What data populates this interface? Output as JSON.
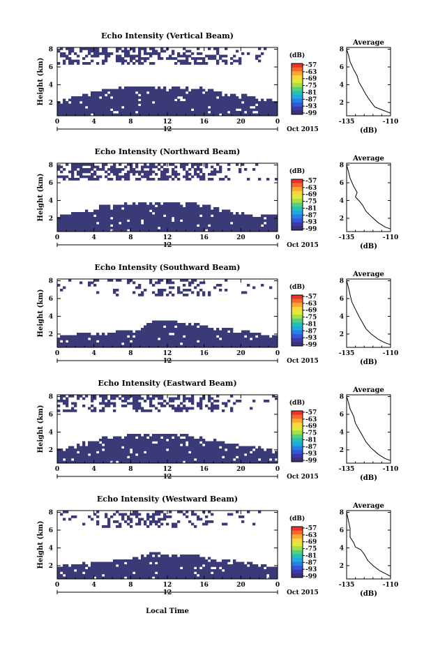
{
  "figure": {
    "xlabel": "Local Time",
    "date_label": "Oct 2015",
    "colorbar_unit": "(dB)",
    "colorbar_ticks": [
      "-57",
      "-63",
      "-69",
      "-75",
      "-81",
      "-87",
      "-93",
      "-99"
    ],
    "colorbar_colors": [
      "#e8322a",
      "#f56a2a",
      "#fba535",
      "#fbd43e",
      "#e0ea3a",
      "#a4e04a",
      "#58cf7c",
      "#26c1b6",
      "#1fa9e0",
      "#2a7ee8",
      "#3755d8",
      "#3d3aa8",
      "#3b3273"
    ],
    "fill_color": "#3b3a78",
    "mark_color": "#000000"
  },
  "chart_data": [
    {
      "type": "heatmap",
      "title": "Echo Intensity (Vertical Beam)",
      "ylabel": "Height (km)",
      "xlim": [
        0,
        24
      ],
      "ylim": [
        0.5,
        8.2
      ],
      "x_ticks": [
        "0",
        "4",
        "8",
        "12",
        "16",
        "20",
        "0"
      ],
      "x_center_label": "12",
      "y_ticks": [
        "2",
        "4",
        "6",
        "8"
      ],
      "low_top_km": [
        2.1,
        2.5,
        2.7,
        2.9,
        3.3,
        3.5,
        3.6,
        3.7,
        3.8,
        3.8,
        3.8,
        3.8,
        3.9,
        3.8,
        3.8,
        3.8,
        3.6,
        3.4,
        3.2,
        3.0,
        2.9,
        2.8,
        2.7,
        2.5
      ],
      "upper_cloud_km": [
        6.2,
        8.1
      ],
      "upper_cover": [
        0.45,
        0.6,
        0.55,
        0.6,
        0.55,
        0.5,
        0.45,
        0.5,
        0.55,
        0.55,
        0.5,
        0.5,
        0.45,
        0.5,
        0.55,
        0.5,
        0.45,
        0.45,
        0.3,
        0.2,
        0.1,
        0.1,
        0.08,
        0.05
      ],
      "profile": {
        "title": "Average",
        "xlabel": "(dB)",
        "x_ticks": [
          "-135",
          "-110"
        ],
        "xlim": [
          -135,
          -110
        ],
        "y_ticks": [
          "2",
          "4",
          "6",
          "8"
        ],
        "ylim": [
          0.5,
          8.2
        ],
        "points": [
          [
            -135,
            8.0
          ],
          [
            -134,
            7.4
          ],
          [
            -133,
            6.6
          ],
          [
            -131,
            5.7
          ],
          [
            -129,
            5.0
          ],
          [
            -128,
            4.3
          ],
          [
            -126,
            3.6
          ],
          [
            -124,
            2.9
          ],
          [
            -122,
            2.3
          ],
          [
            -119,
            1.5
          ],
          [
            -114,
            1.1
          ],
          [
            -110,
            0.8
          ]
        ]
      }
    },
    {
      "type": "heatmap",
      "title": "Echo Intensity (Northward Beam)",
      "ylabel": "Height (km)",
      "xlim": [
        0,
        24
      ],
      "ylim": [
        0.5,
        8.2
      ],
      "x_ticks": [
        "0",
        "4",
        "8",
        "12",
        "16",
        "20",
        "0"
      ],
      "x_center_label": "12",
      "y_ticks": [
        "2",
        "4",
        "6",
        "8"
      ],
      "low_top_km": [
        2.3,
        2.5,
        2.6,
        2.9,
        3.2,
        3.5,
        3.5,
        3.6,
        3.8,
        3.9,
        3.9,
        3.9,
        3.8,
        3.8,
        3.8,
        3.7,
        3.6,
        3.3,
        3.0,
        2.8,
        2.6,
        2.5,
        2.4,
        2.3
      ],
      "upper_cloud_km": [
        6.2,
        8.1
      ],
      "upper_cover": [
        0.4,
        0.55,
        0.6,
        0.6,
        0.55,
        0.55,
        0.6,
        0.6,
        0.55,
        0.55,
        0.6,
        0.55,
        0.5,
        0.5,
        0.5,
        0.55,
        0.45,
        0.4,
        0.25,
        0.15,
        0.1,
        0.1,
        0.08,
        0.05
      ],
      "profile": {
        "title": "Average",
        "xlabel": "(dB)",
        "x_ticks": [
          "-135",
          "-110"
        ],
        "xlim": [
          -135,
          -110
        ],
        "y_ticks": [
          "2",
          "4",
          "6",
          "8"
        ],
        "ylim": [
          0.5,
          8.2
        ],
        "points": [
          [
            -135,
            8.0
          ],
          [
            -134,
            7.3
          ],
          [
            -133,
            6.5
          ],
          [
            -131,
            5.6
          ],
          [
            -129,
            4.9
          ],
          [
            -130,
            4.4
          ],
          [
            -128,
            4.0
          ],
          [
            -126,
            3.5
          ],
          [
            -124,
            2.8
          ],
          [
            -121,
            2.2
          ],
          [
            -117,
            1.5
          ],
          [
            -113,
            1.0
          ],
          [
            -110,
            0.8
          ]
        ]
      }
    },
    {
      "type": "heatmap",
      "title": "Echo Intensity (Southward Beam)",
      "ylabel": "Height (km)",
      "xlim": [
        0,
        24
      ],
      "ylim": [
        0.5,
        8.2
      ],
      "x_ticks": [
        "0",
        "4",
        "8",
        "12",
        "16",
        "20",
        "0"
      ],
      "x_center_label": "12",
      "y_ticks": [
        "2",
        "4",
        "6",
        "8"
      ],
      "low_top_km": [
        1.7,
        1.9,
        2.0,
        2.1,
        2.1,
        2.2,
        2.2,
        2.4,
        2.5,
        2.6,
        3.4,
        3.5,
        3.5,
        3.4,
        3.3,
        3.2,
        3.0,
        2.8,
        2.6,
        2.6,
        2.4,
        2.3,
        2.1,
        2.0
      ],
      "upper_cloud_km": [
        6.2,
        8.1
      ],
      "upper_cover": [
        0.05,
        0.05,
        0.08,
        0.1,
        0.1,
        0.15,
        0.2,
        0.15,
        0.15,
        0.2,
        0.3,
        0.4,
        0.45,
        0.45,
        0.4,
        0.3,
        0.2,
        0.15,
        0.1,
        0.1,
        0.08,
        0.05,
        0.05,
        0.05
      ],
      "profile": {
        "title": "Average",
        "xlabel": "(dB)",
        "x_ticks": [
          "-135",
          "-110"
        ],
        "xlim": [
          -135,
          -110
        ],
        "y_ticks": [
          "2",
          "4",
          "6",
          "8"
        ],
        "ylim": [
          0.5,
          8.2
        ],
        "points": [
          [
            -135,
            8.0
          ],
          [
            -134,
            7.3
          ],
          [
            -133,
            6.4
          ],
          [
            -132,
            5.6
          ],
          [
            -130,
            4.8
          ],
          [
            -128,
            4.0
          ],
          [
            -126,
            3.3
          ],
          [
            -124,
            2.6
          ],
          [
            -121,
            2.0
          ],
          [
            -117,
            1.4
          ],
          [
            -113,
            1.0
          ],
          [
            -110,
            0.8
          ]
        ]
      }
    },
    {
      "type": "heatmap",
      "title": "Echo Intensity (Eastward Beam)",
      "ylabel": "Height (km)",
      "xlim": [
        0,
        24
      ],
      "ylim": [
        0.5,
        8.2
      ],
      "x_ticks": [
        "0",
        "4",
        "8",
        "12",
        "16",
        "20",
        "0"
      ],
      "x_center_label": "12",
      "y_ticks": [
        "2",
        "4",
        "6",
        "8"
      ],
      "low_top_km": [
        2.0,
        2.4,
        2.6,
        2.9,
        3.1,
        3.4,
        3.5,
        3.6,
        3.7,
        3.8,
        3.8,
        3.8,
        3.8,
        3.7,
        3.7,
        3.6,
        3.4,
        3.2,
        2.9,
        2.7,
        2.5,
        2.4,
        2.3,
        2.1
      ],
      "upper_cloud_km": [
        6.2,
        8.1
      ],
      "upper_cover": [
        0.45,
        0.6,
        0.55,
        0.55,
        0.5,
        0.55,
        0.5,
        0.5,
        0.55,
        0.55,
        0.5,
        0.55,
        0.5,
        0.55,
        0.55,
        0.45,
        0.4,
        0.35,
        0.25,
        0.15,
        0.1,
        0.1,
        0.08,
        0.05
      ],
      "profile": {
        "title": "Average",
        "xlabel": "(dB)",
        "x_ticks": [
          "-135",
          "-110"
        ],
        "xlim": [
          -135,
          -110
        ],
        "y_ticks": [
          "2",
          "4",
          "6",
          "8"
        ],
        "ylim": [
          0.5,
          8.2
        ],
        "points": [
          [
            -135,
            8.0
          ],
          [
            -134,
            7.4
          ],
          [
            -133,
            6.6
          ],
          [
            -131,
            5.8
          ],
          [
            -130,
            5.0
          ],
          [
            -128,
            4.3
          ],
          [
            -126,
            3.6
          ],
          [
            -124,
            2.9
          ],
          [
            -121,
            2.2
          ],
          [
            -117,
            1.5
          ],
          [
            -113,
            1.0
          ],
          [
            -110,
            0.8
          ]
        ]
      }
    },
    {
      "type": "heatmap",
      "title": "Echo Intensity (Westward Beam)",
      "ylabel": "Height (km)",
      "xlim": [
        0,
        24
      ],
      "ylim": [
        0.5,
        8.2
      ],
      "x_ticks": [
        "0",
        "4",
        "8",
        "12",
        "16",
        "20",
        "0"
      ],
      "x_center_label": "12",
      "y_ticks": [
        "2",
        "4",
        "6",
        "8"
      ],
      "low_top_km": [
        1.9,
        2.1,
        2.2,
        2.3,
        2.4,
        2.5,
        2.6,
        2.7,
        2.8,
        3.2,
        3.4,
        3.4,
        3.3,
        3.4,
        3.3,
        3.2,
        3.0,
        2.8,
        2.7,
        2.6,
        2.5,
        2.3,
        2.2,
        2.0
      ],
      "upper_cloud_km": [
        6.2,
        8.1
      ],
      "upper_cover": [
        0.1,
        0.1,
        0.1,
        0.15,
        0.2,
        0.35,
        0.4,
        0.35,
        0.3,
        0.35,
        0.4,
        0.45,
        0.4,
        0.35,
        0.3,
        0.2,
        0.15,
        0.1,
        0.1,
        0.08,
        0.05,
        0.05,
        0.05,
        0.05
      ],
      "profile": {
        "title": "Average",
        "xlabel": "(dB)",
        "x_ticks": [
          "-135",
          "-110"
        ],
        "xlim": [
          -135,
          -110
        ],
        "y_ticks": [
          "2",
          "4",
          "6",
          "8"
        ],
        "ylim": [
          0.5,
          8.2
        ],
        "points": [
          [
            -135,
            8.0
          ],
          [
            -134,
            7.1
          ],
          [
            -133,
            6.2
          ],
          [
            -133,
            5.2
          ],
          [
            -131,
            4.6
          ],
          [
            -130,
            4.1
          ],
          [
            -127,
            3.8
          ],
          [
            -125,
            3.3
          ],
          [
            -123,
            2.6
          ],
          [
            -120,
            2.0
          ],
          [
            -116,
            1.4
          ],
          [
            -112,
            1.0
          ],
          [
            -110,
            0.8
          ]
        ]
      }
    }
  ]
}
